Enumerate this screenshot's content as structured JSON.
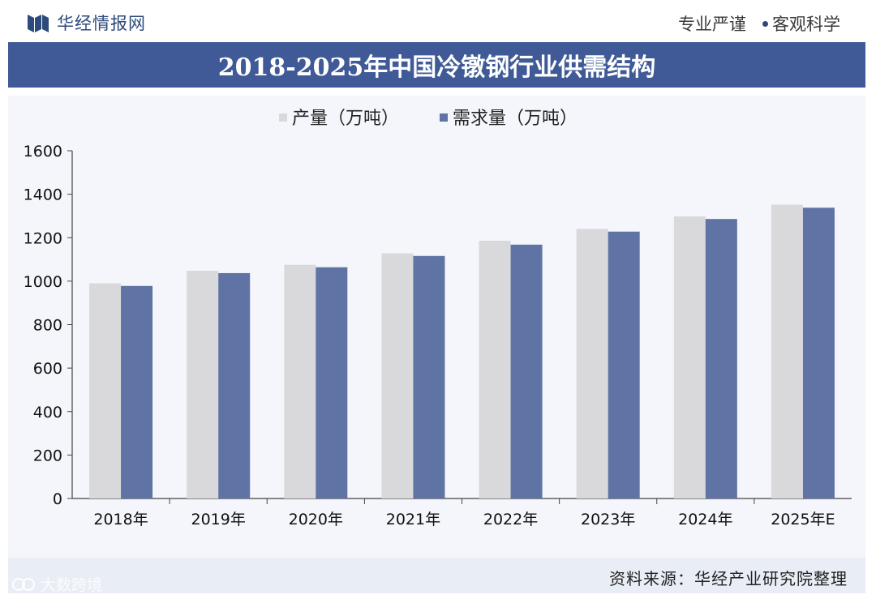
{
  "header": {
    "brand": "华经情报网",
    "motto_left": "专业严谨",
    "motto_right": "客观科学"
  },
  "colors": {
    "title_bar": "#3f5a96",
    "production": "#d9d9db",
    "demand": "#5f74a4",
    "footer": "#e9edf5"
  },
  "chart_data": {
    "type": "bar",
    "title": "2018-2025年中国冷镦钢行业供需结构",
    "categories": [
      "2018年",
      "2019年",
      "2020年",
      "2021年",
      "2022年",
      "2023年",
      "2024年",
      "2025年E"
    ],
    "series": [
      {
        "name": "产量（万吨）",
        "values": [
          990,
          1048,
          1075,
          1128,
          1186,
          1240,
          1298,
          1352
        ]
      },
      {
        "name": "需求量（万吨）",
        "values": [
          978,
          1037,
          1064,
          1116,
          1168,
          1228,
          1286,
          1338
        ]
      }
    ],
    "ylim": [
      0,
      1600
    ],
    "yticks": [
      0,
      200,
      400,
      600,
      800,
      1000,
      1200,
      1400,
      1600
    ],
    "xlabel": "",
    "ylabel": "",
    "grid": false,
    "legend": "top"
  },
  "footer": {
    "source": "资料来源：华经产业研究院整理"
  },
  "watermark": {
    "corner_text": "大数跨境"
  }
}
